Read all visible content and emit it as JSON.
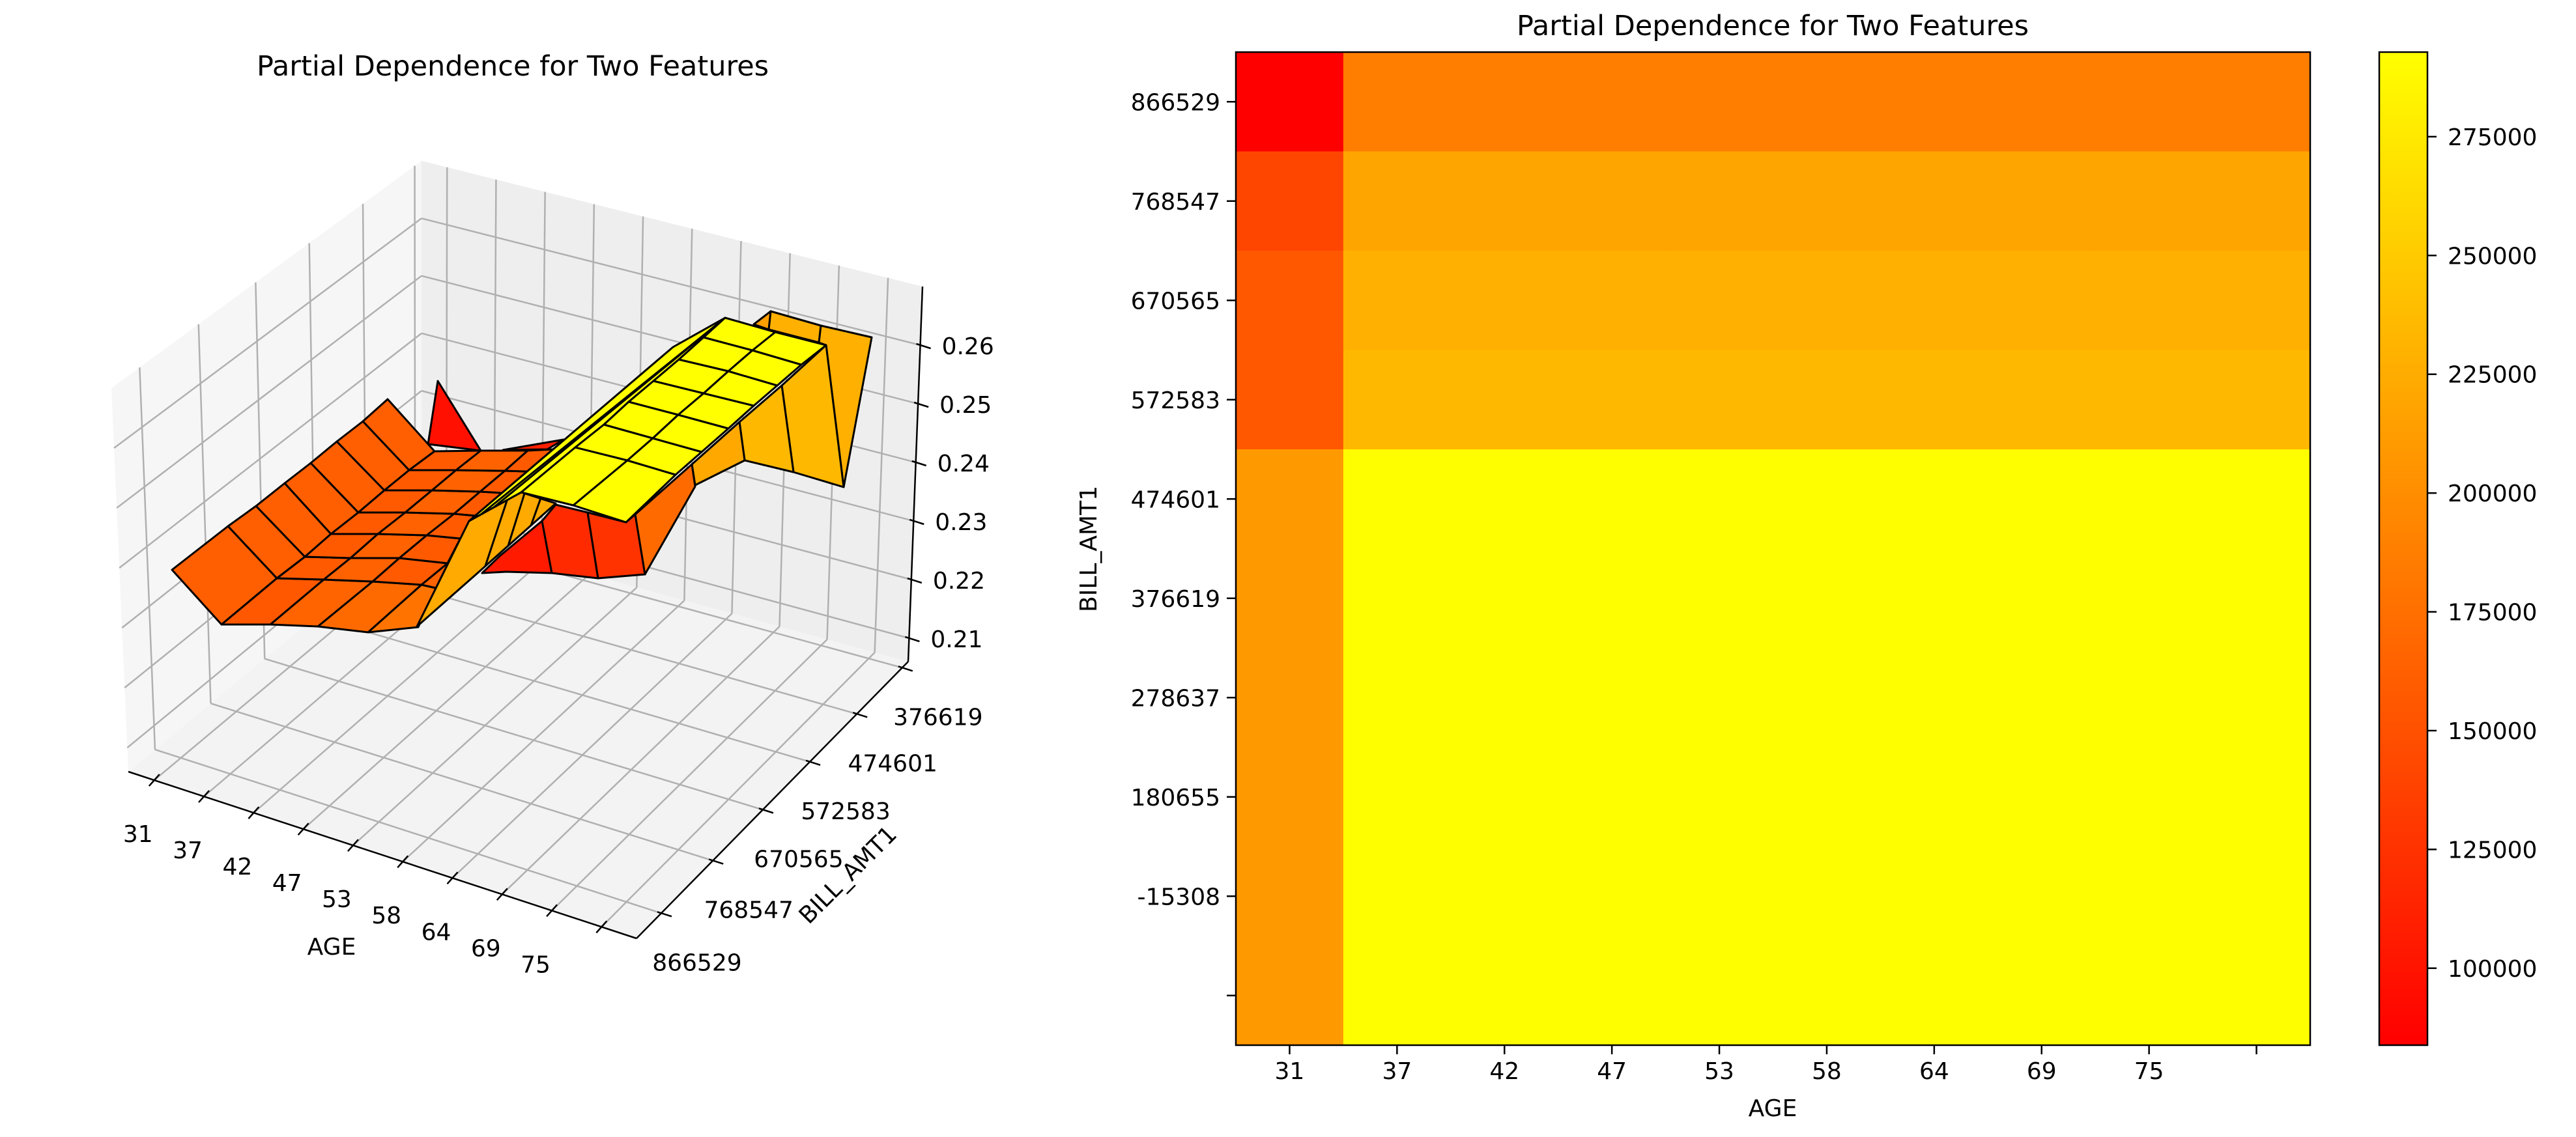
{
  "chart_data": [
    {
      "type": "surface3d",
      "title": "Partial Dependence for Two Features",
      "xlabel": "AGE",
      "ylabel": "BILL_AMT1",
      "x_ticklabels": [
        "31",
        "37",
        "42",
        "47",
        "53",
        "58",
        "64",
        "69",
        "75"
      ],
      "y_ticklabels": [
        "866529",
        "768547",
        "670565",
        "572583",
        "474601",
        "376619"
      ],
      "z_ticks": [
        0.21,
        0.22,
        0.23,
        0.24,
        0.25,
        0.26
      ],
      "zlim": [
        0.206,
        0.27
      ],
      "cmap": "autumn",
      "grid": true,
      "edge_color": "#000000"
    },
    {
      "type": "heatmap",
      "title": "Partial Dependence for Two Features",
      "xlabel": "AGE",
      "ylabel": "BILL_AMT1",
      "x_ticklabels": [
        "31",
        "37",
        "42",
        "47",
        "53",
        "58",
        "64",
        "69",
        "75",
        ""
      ],
      "y_ticklabels": [
        "866529",
        "768547",
        "670565",
        "572583",
        "474601",
        "376619",
        "278637",
        "180655",
        "-15308",
        ""
      ],
      "values": [
        [
          84000,
          187000,
          187000,
          187000,
          187000,
          187000,
          187000,
          187000,
          187000,
          187000
        ],
        [
          141000,
          219000,
          219000,
          219000,
          219000,
          219000,
          219000,
          219000,
          219000,
          219000
        ],
        [
          156000,
          228000,
          228000,
          228000,
          228000,
          228000,
          228000,
          228000,
          228000,
          228000
        ],
        [
          156000,
          235000,
          235000,
          235000,
          235000,
          235000,
          235000,
          235000,
          235000,
          235000
        ],
        [
          209000,
          292000,
          292000,
          292000,
          292000,
          292000,
          292000,
          292000,
          292000,
          292000
        ],
        [
          209000,
          292000,
          292000,
          292000,
          292000,
          292000,
          292000,
          292000,
          292000,
          292000
        ],
        [
          209000,
          292000,
          292000,
          292000,
          292000,
          292000,
          292000,
          292000,
          292000,
          292000
        ],
        [
          209000,
          292000,
          292000,
          292000,
          292000,
          292000,
          292000,
          292000,
          292000,
          292000
        ],
        [
          209000,
          292000,
          292000,
          292000,
          292000,
          292000,
          292000,
          292000,
          292000,
          292000
        ],
        [
          209000,
          292000,
          292000,
          292000,
          292000,
          292000,
          292000,
          292000,
          292000,
          292000
        ]
      ],
      "cmap": "autumn",
      "cmap_colors": {
        "min": "#ff0000",
        "max": "#ffff00"
      },
      "colorbar": {
        "ticks": [
          100000,
          125000,
          150000,
          175000,
          200000,
          225000,
          250000,
          275000
        ],
        "range": [
          83800,
          292800
        ]
      }
    }
  ]
}
